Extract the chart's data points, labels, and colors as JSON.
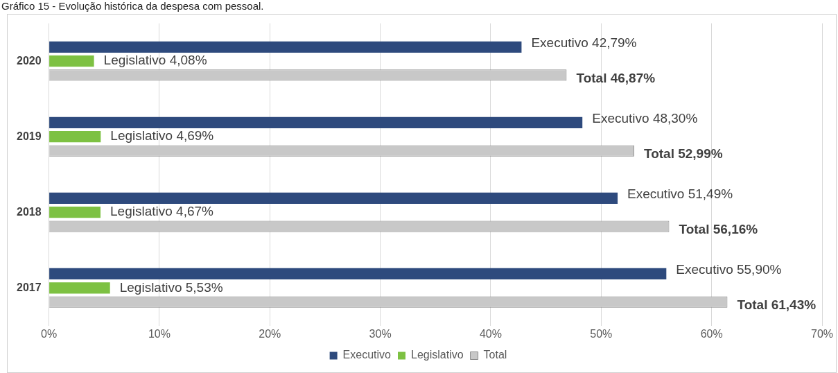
{
  "chart_data": {
    "type": "bar",
    "orientation": "horizontal",
    "title": "Gráfico 15 - Evolução histórica da despesa com pessoal.",
    "categories": [
      "2020",
      "2019",
      "2018",
      "2017"
    ],
    "series": [
      {
        "name": "Executivo",
        "color": "#2e4a7d",
        "values": [
          42.79,
          48.3,
          51.49,
          55.9
        ],
        "value_labels": [
          "Executivo 42,79%",
          "Executivo 48,30%",
          "Executivo 51,49%",
          "Executivo 55,90%"
        ]
      },
      {
        "name": "Legislativo",
        "color": "#7dc142",
        "values": [
          4.08,
          4.69,
          4.67,
          5.53
        ],
        "value_labels": [
          "Legislativo 4,08%",
          "Legislativo 4,69%",
          "Legislativo 4,67%",
          "Legislativo 5,53%"
        ]
      },
      {
        "name": "Total",
        "color": "#c8c8c8",
        "values": [
          46.87,
          52.99,
          56.16,
          61.43
        ],
        "value_labels": [
          "Total 46,87%",
          "Total 52,99%",
          "Total 56,16%",
          "Total 61,43%"
        ]
      }
    ],
    "xlim": [
      0,
      70
    ],
    "xticks": [
      {
        "value": 0,
        "label": "0%"
      },
      {
        "value": 10,
        "label": "10%"
      },
      {
        "value": 20,
        "label": "20%"
      },
      {
        "value": 30,
        "label": "30%"
      },
      {
        "value": 40,
        "label": "40%"
      },
      {
        "value": 50,
        "label": "50%"
      },
      {
        "value": 60,
        "label": "60%"
      },
      {
        "value": 70,
        "label": "70%"
      }
    ],
    "grid": "x",
    "legend": "bottom"
  }
}
